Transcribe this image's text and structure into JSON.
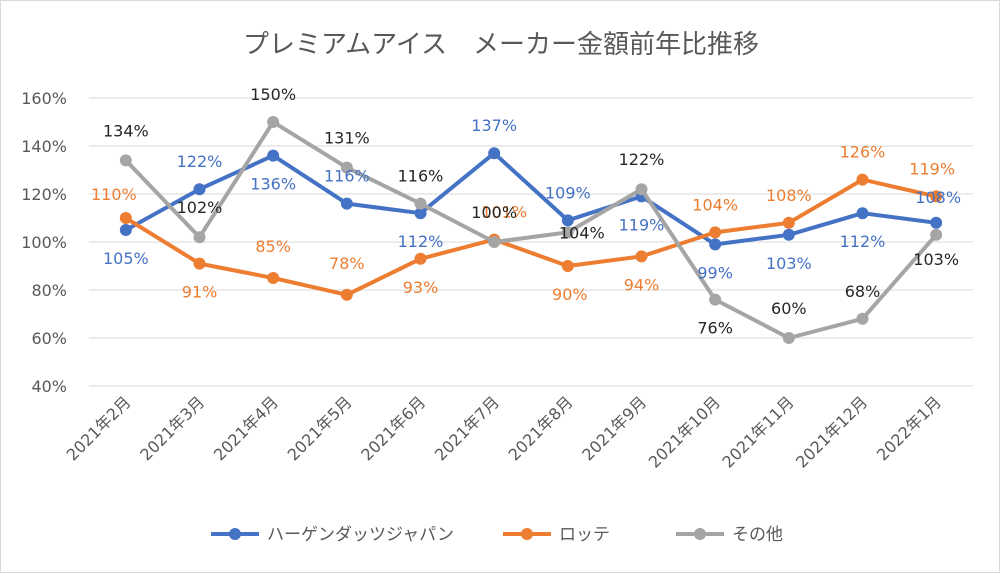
{
  "chart_data": {
    "type": "line",
    "title": "プレミアムアイス　メーカー金額前年比推移",
    "xlabel": "",
    "ylabel": "",
    "categories": [
      "2021年2月",
      "2021年3月",
      "2021年4月",
      "2021年5月",
      "2021年6月",
      "2021年7月",
      "2021年8月",
      "2021年9月",
      "2021年10月",
      "2021年11月",
      "2021年12月",
      "2022年1月"
    ],
    "ylim": [
      40,
      160
    ],
    "yticks": [
      "40%",
      "60%",
      "80%",
      "100%",
      "120%",
      "140%",
      "160%"
    ],
    "grid": true,
    "legend_position": "bottom",
    "series": [
      {
        "name": "ハーゲンダッツジャパン",
        "color": "#4472C4",
        "values": [
          105,
          122,
          136,
          116,
          112,
          137,
          109,
          119,
          99,
          103,
          112,
          108
        ],
        "labels": [
          "105%",
          "122%",
          "136%",
          "116%",
          "112%",
          "137%",
          "109%",
          "119%",
          "99%",
          "103%",
          "112%",
          "108%"
        ]
      },
      {
        "name": "ロッテ",
        "color": "#ED7D31",
        "values": [
          110,
          91,
          85,
          78,
          93,
          101,
          90,
          94,
          104,
          108,
          126,
          119
        ],
        "labels": [
          "110%",
          "91%",
          "85%",
          "78%",
          "93%",
          "101%",
          "90%",
          "94%",
          "104%",
          "108%",
          "126%",
          "119%"
        ]
      },
      {
        "name": "その他",
        "color": "#A5A5A5",
        "label_color": "#262626",
        "values": [
          134,
          102,
          150,
          131,
          116,
          100,
          104,
          122,
          76,
          60,
          68,
          103
        ],
        "labels": [
          "134%",
          "102%",
          "150%",
          "131%",
          "116%",
          "100%",
          "104%",
          "122%",
          "76%",
          "60%",
          "68%",
          "103%"
        ]
      }
    ]
  }
}
